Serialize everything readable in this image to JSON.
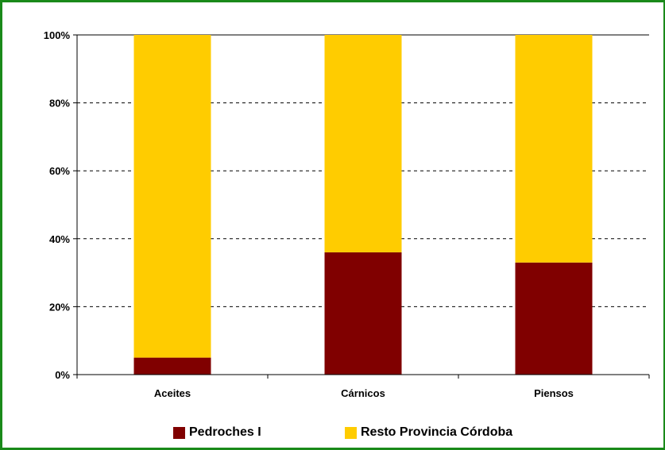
{
  "chart_data": {
    "type": "bar",
    "stacked": true,
    "percent": true,
    "categories": [
      "Aceites",
      "Cárnicos",
      "Piensos"
    ],
    "series": [
      {
        "name": "Pedroches I",
        "values": [
          5,
          36,
          33
        ],
        "color": "#800000"
      },
      {
        "name": "Resto Provincia Córdoba",
        "values": [
          95,
          64,
          67
        ],
        "color": "#FFCC00"
      }
    ],
    "ylim": [
      0,
      100
    ],
    "yticks": [
      "0%",
      "20%",
      "40%",
      "60%",
      "80%",
      "100%"
    ],
    "grid": true,
    "legend_position": "bottom",
    "frame_color": "#1A8A1A"
  }
}
